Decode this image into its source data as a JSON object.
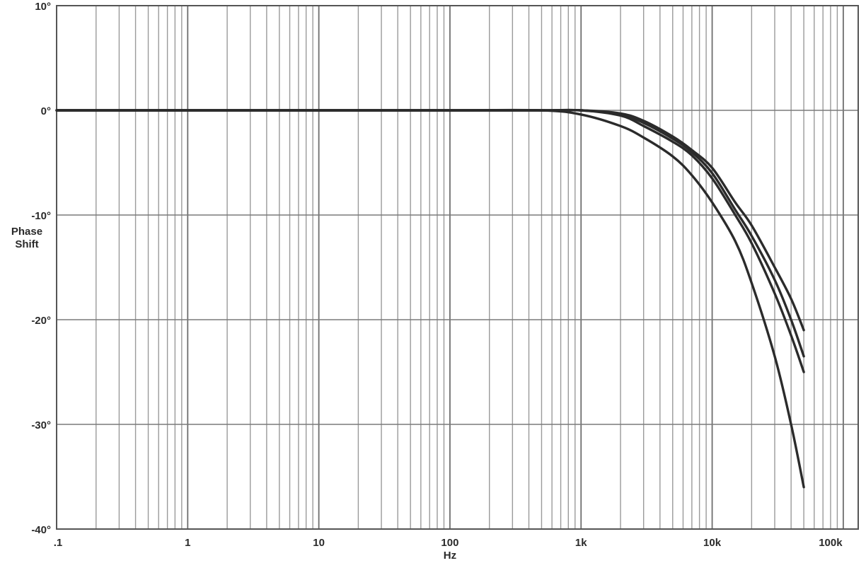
{
  "chart_data": {
    "type": "line",
    "title": "",
    "xlabel": "Hz",
    "ylabel_lines": [
      "Phase",
      "Shift"
    ],
    "x_scale": "log",
    "xlim": [
      0.1,
      130000
    ],
    "ylim": [
      -40,
      10
    ],
    "grid": true,
    "x_ticks": [
      {
        "value": 0.1,
        "label": ".1"
      },
      {
        "value": 1,
        "label": "1"
      },
      {
        "value": 10,
        "label": "10"
      },
      {
        "value": 100,
        "label": "100"
      },
      {
        "value": 1000,
        "label": "1k"
      },
      {
        "value": 10000,
        "label": "10k"
      },
      {
        "value": 100000,
        "label": "100k"
      }
    ],
    "y_ticks": [
      {
        "value": 10,
        "label": "10°"
      },
      {
        "value": 0,
        "label": "0°"
      },
      {
        "value": -10,
        "label": "-10°"
      },
      {
        "value": -20,
        "label": "-20°"
      },
      {
        "value": -30,
        "label": "-30°"
      },
      {
        "value": -40,
        "label": "-40°"
      }
    ],
    "line_color": "#2b2b2b",
    "grid_color": "#9a9a9a",
    "series": [
      {
        "x": [
          0.1,
          1,
          10,
          100,
          500,
          1000,
          2000,
          3000,
          5000,
          7000,
          10000,
          15000,
          20000,
          30000,
          40000,
          50000
        ],
        "y": [
          0,
          0,
          0,
          0,
          0,
          0,
          -0.5,
          -1.5,
          -3,
          -4.3,
          -6.5,
          -10,
          -12.7,
          -17.5,
          -21.5,
          -25
        ]
      },
      {
        "x": [
          0.1,
          1,
          10,
          100,
          500,
          1000,
          2000,
          3000,
          5000,
          7000,
          10000,
          15000,
          20000,
          30000,
          40000,
          50000
        ],
        "y": [
          0,
          0,
          0,
          0,
          0,
          0,
          -0.4,
          -1.2,
          -2.7,
          -4,
          -6,
          -9.5,
          -12,
          -16.2,
          -20,
          -23.5
        ]
      },
      {
        "x": [
          0.1,
          1,
          10,
          100,
          500,
          1000,
          2000,
          3000,
          5000,
          7000,
          10000,
          15000,
          20000,
          30000,
          40000,
          50000
        ],
        "y": [
          0,
          0,
          0,
          0,
          0,
          0,
          -0.3,
          -1,
          -2.5,
          -3.8,
          -5.5,
          -8.8,
          -11,
          -15,
          -18,
          -21
        ]
      },
      {
        "x": [
          0.1,
          1,
          10,
          100,
          500,
          1000,
          2000,
          3000,
          5000,
          7000,
          10000,
          15000,
          20000,
          30000,
          40000,
          50000
        ],
        "y": [
          0,
          0,
          0,
          0,
          0,
          -0.4,
          -1.5,
          -2.6,
          -4.4,
          -6.2,
          -8.8,
          -12.5,
          -16.5,
          -23.5,
          -30,
          -36
        ]
      }
    ]
  }
}
